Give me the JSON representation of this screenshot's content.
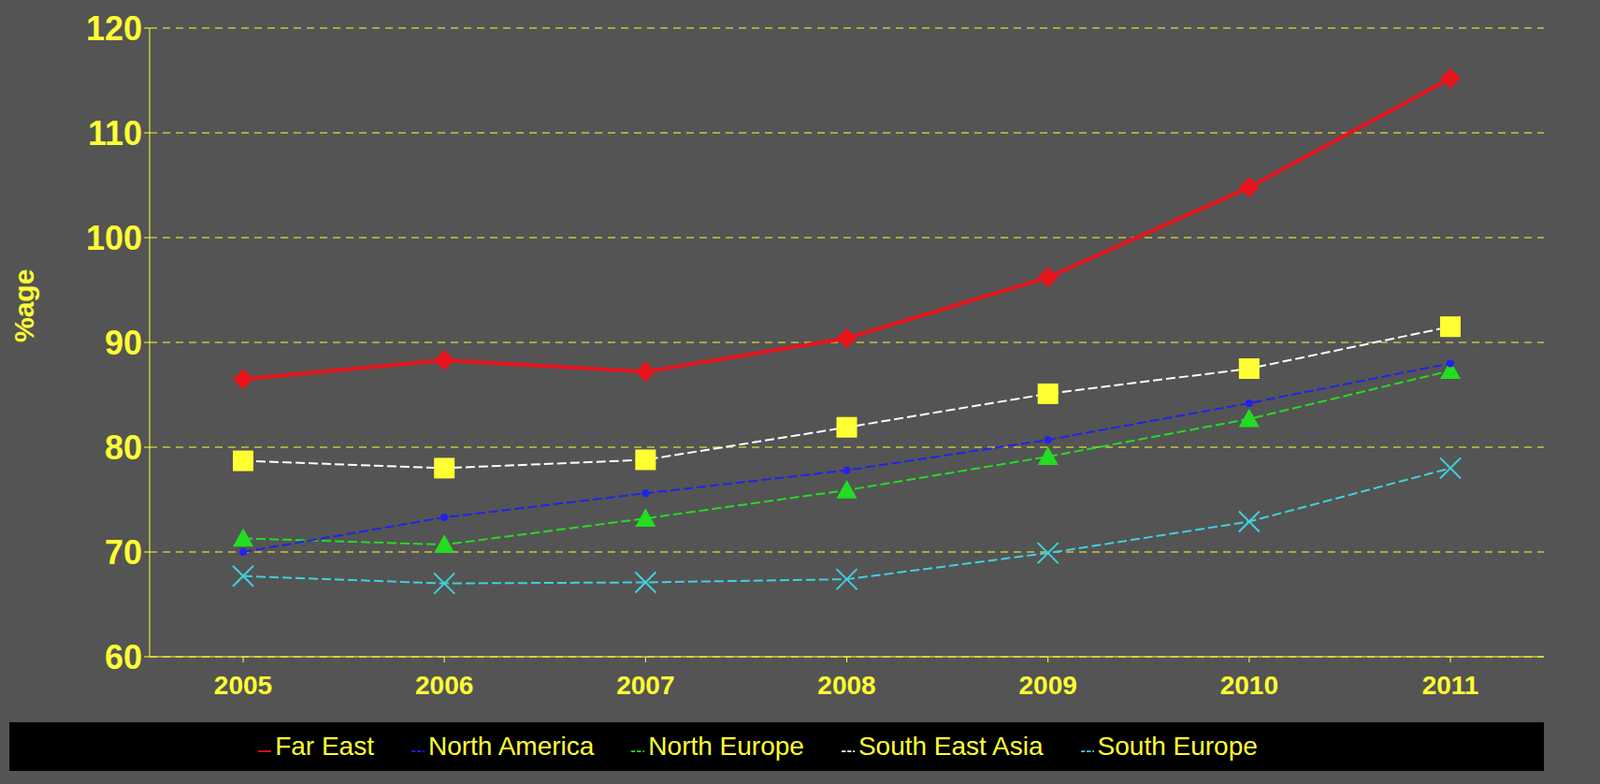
{
  "chart_data": {
    "type": "line",
    "y_label": "%age",
    "categories": [
      "2005",
      "2006",
      "2007",
      "2008",
      "2009",
      "2010",
      "2011"
    ],
    "series": [
      {
        "name": "Far East",
        "color": "#e8141c",
        "marker": "diamond",
        "line_style": "solid",
        "values": [
          86.5,
          88.3,
          87.2,
          90.4,
          96.2,
          104.8,
          115.2
        ]
      },
      {
        "name": "South East Asia",
        "color": "#ffffff",
        "marker": "square",
        "line_style": "dashed",
        "values": [
          78.7,
          78.0,
          78.8,
          81.9,
          85.1,
          87.5,
          91.5
        ]
      },
      {
        "name": "North Europe",
        "color": "#22dd22",
        "marker": "triangle",
        "line_style": "dashed",
        "values": [
          71.3,
          70.7,
          73.2,
          75.9,
          79.1,
          82.7,
          87.3
        ]
      },
      {
        "name": "South Europe",
        "color": "#40d0e0",
        "marker": "x",
        "line_style": "dashed",
        "values": [
          67.7,
          67.0,
          67.1,
          67.4,
          69.9,
          72.9,
          78.0
        ]
      },
      {
        "name": "North America",
        "color": "#2222ee",
        "marker": "dot",
        "line_style": "dashed",
        "values": [
          70.0,
          73.3,
          75.6,
          77.8,
          80.7,
          84.2,
          88.0
        ]
      }
    ],
    "ylim": [
      60,
      120
    ],
    "yticks": [
      60,
      70,
      80,
      90,
      100,
      110,
      120
    ],
    "grid": true,
    "legend": "bottom"
  }
}
